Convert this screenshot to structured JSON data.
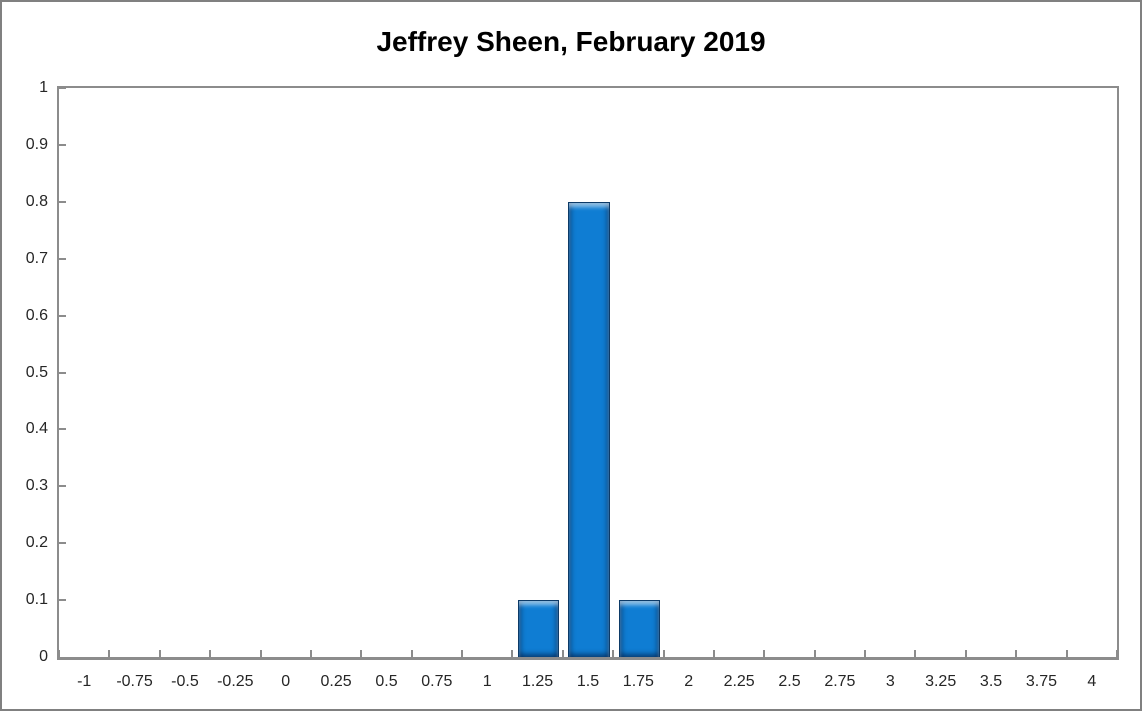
{
  "chart_data": {
    "type": "bar",
    "title": "Jeffrey Sheen, February 2019",
    "categories": [
      "-1",
      "-0.75",
      "-0.5",
      "-0.25",
      "0",
      "0.25",
      "0.5",
      "0.75",
      "1",
      "1.25",
      "1.5",
      "1.75",
      "2",
      "2.25",
      "2.5",
      "2.75",
      "3",
      "3.25",
      "3.5",
      "3.75",
      "4"
    ],
    "values": [
      0,
      0,
      0,
      0,
      0,
      0,
      0,
      0,
      0,
      0.1,
      0.8,
      0.1,
      0,
      0,
      0,
      0,
      0,
      0,
      0,
      0,
      0
    ],
    "xlabel": "",
    "ylabel": "",
    "ylim": [
      0,
      1
    ],
    "ytick_labels": [
      "0",
      "0.1",
      "0.2",
      "0.3",
      "0.4",
      "0.5",
      "0.6",
      "0.7",
      "0.8",
      "0.9",
      "1"
    ],
    "grid": false,
    "legend": "none",
    "bar_width_ratio": 0.78
  },
  "colors": {
    "bar_fill": "#0F7DD3",
    "bar_border": "#0C3A67",
    "axis_line": "#8C8C8C",
    "label_text": "#262626",
    "title_text": "#000000",
    "frame_border": "#808080",
    "background": "#FFFFFF"
  }
}
